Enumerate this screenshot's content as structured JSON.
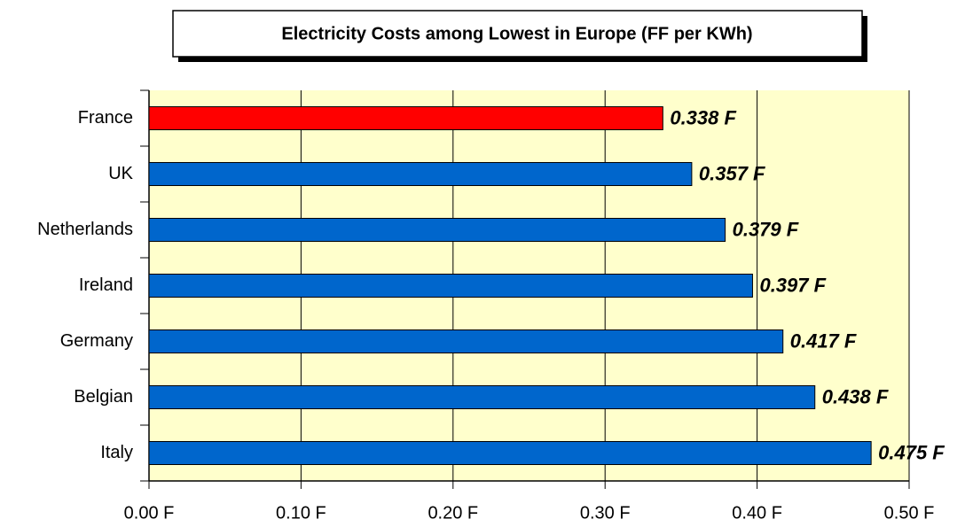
{
  "chart_data": {
    "type": "bar",
    "orientation": "horizontal",
    "title": "Electricity Costs among Lowest in Europe (FF per KWh)",
    "categories": [
      "France",
      "UK",
      "Netherlands",
      "Ireland",
      "Germany",
      "Belgian",
      "Italy"
    ],
    "values": [
      0.338,
      0.357,
      0.379,
      0.397,
      0.417,
      0.438,
      0.475
    ],
    "value_labels": [
      "0.338 F",
      "0.357 F",
      "0.379 F",
      "0.397 F",
      "0.417 F",
      "0.438 F",
      "0.475 F"
    ],
    "colors": [
      "#ff0000",
      "#0066cc",
      "#0066cc",
      "#0066cc",
      "#0066cc",
      "#0066cc",
      "#0066cc"
    ],
    "xlim": [
      0,
      0.5
    ],
    "xticks": [
      {
        "value": 0,
        "label": "0.00 F"
      },
      {
        "value": 0.1,
        "label": "0.10 F"
      },
      {
        "value": 0.2,
        "label": "0.20 F"
      },
      {
        "value": 0.3,
        "label": "0.30 F"
      },
      {
        "value": 0.4,
        "label": "0.40 F"
      },
      {
        "value": 0.5,
        "label": "0.50 F"
      }
    ],
    "grid": true,
    "plot_background": "#ffffcc"
  }
}
